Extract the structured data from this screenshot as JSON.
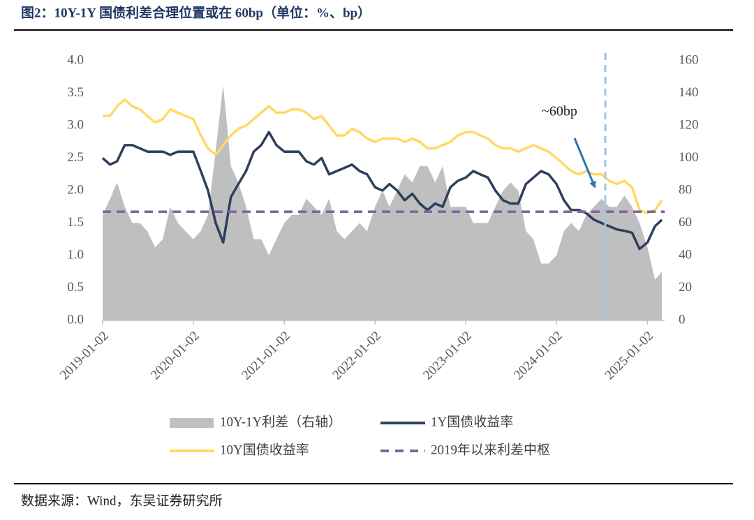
{
  "chart_data": {
    "type": "line",
    "title": "图2：10Y-1Y 国债利差合理位置或在 60bp（单位：%、bp）",
    "source": "数据来源：Wind，东吴证券研究所",
    "annotation": "~60bp",
    "x": [
      "2019-01-02",
      "2019-02-01",
      "2019-03-01",
      "2019-04-01",
      "2019-05-01",
      "2019-06-01",
      "2019-07-01",
      "2019-08-01",
      "2019-09-01",
      "2019-10-01",
      "2019-11-01",
      "2019-12-01",
      "2020-01-02",
      "2020-02-01",
      "2020-03-01",
      "2020-04-01",
      "2020-05-01",
      "2020-06-01",
      "2020-07-01",
      "2020-08-01",
      "2020-09-01",
      "2020-10-01",
      "2020-11-01",
      "2020-12-01",
      "2021-01-02",
      "2021-02-01",
      "2021-03-01",
      "2021-04-01",
      "2021-05-01",
      "2021-06-01",
      "2021-07-01",
      "2021-08-01",
      "2021-09-01",
      "2021-10-01",
      "2021-11-01",
      "2021-12-01",
      "2022-01-02",
      "2022-02-01",
      "2022-03-01",
      "2022-04-01",
      "2022-05-01",
      "2022-06-01",
      "2022-07-01",
      "2022-08-01",
      "2022-09-01",
      "2022-10-01",
      "2022-11-01",
      "2022-12-01",
      "2023-01-02",
      "2023-02-01",
      "2023-03-01",
      "2023-04-01",
      "2023-05-01",
      "2023-06-01",
      "2023-07-01",
      "2023-08-01",
      "2023-09-01",
      "2023-10-01",
      "2023-11-01",
      "2023-12-01",
      "2024-01-02",
      "2024-02-01",
      "2024-03-01",
      "2024-04-01",
      "2024-05-01",
      "2024-06-01",
      "2024-07-01",
      "2024-08-01",
      "2024-09-01",
      "2024-10-01",
      "2024-11-01",
      "2024-12-01",
      "2025-01-02",
      "2025-02-01",
      "2025-03-01"
    ],
    "series": [
      {
        "name": "10Y-1Y利差（右轴）",
        "type": "area",
        "axis": "y2",
        "color": "#bfbfbf",
        "values": [
          65,
          75,
          85,
          70,
          60,
          60,
          55,
          45,
          50,
          70,
          60,
          55,
          50,
          55,
          65,
          105,
          145,
          95,
          85,
          70,
          50,
          50,
          40,
          50,
          60,
          65,
          65,
          75,
          70,
          65,
          75,
          55,
          50,
          55,
          60,
          55,
          70,
          80,
          70,
          80,
          90,
          85,
          95,
          95,
          85,
          95,
          70,
          70,
          70,
          60,
          60,
          60,
          70,
          80,
          85,
          80,
          55,
          50,
          35,
          35,
          40,
          55,
          60,
          55,
          65,
          70,
          75,
          70,
          70,
          77,
          70,
          60,
          45,
          25,
          30
        ]
      },
      {
        "name": "1Y国债收益率",
        "type": "line",
        "color": "#2e3f5c",
        "values": [
          2.5,
          2.4,
          2.45,
          2.7,
          2.7,
          2.65,
          2.6,
          2.6,
          2.6,
          2.55,
          2.6,
          2.6,
          2.6,
          2.3,
          2.0,
          1.5,
          1.2,
          1.9,
          2.1,
          2.3,
          2.6,
          2.7,
          2.9,
          2.7,
          2.6,
          2.6,
          2.6,
          2.45,
          2.4,
          2.5,
          2.25,
          2.3,
          2.35,
          2.4,
          2.3,
          2.25,
          2.05,
          2.0,
          2.1,
          2.0,
          1.85,
          1.95,
          1.8,
          1.7,
          1.8,
          1.75,
          2.05,
          2.15,
          2.2,
          2.3,
          2.25,
          2.2,
          2.0,
          1.85,
          1.8,
          1.8,
          2.1,
          2.2,
          2.3,
          2.25,
          2.1,
          1.85,
          1.7,
          1.7,
          1.65,
          1.55,
          1.5,
          1.45,
          1.4,
          1.38,
          1.35,
          1.1,
          1.2,
          1.45,
          1.55
        ]
      },
      {
        "name": "10Y国债收益率",
        "type": "line",
        "color": "#ffd966",
        "values": [
          3.15,
          3.15,
          3.3,
          3.4,
          3.3,
          3.25,
          3.15,
          3.05,
          3.1,
          3.25,
          3.2,
          3.15,
          3.1,
          2.85,
          2.65,
          2.55,
          2.7,
          2.85,
          2.95,
          3.0,
          3.1,
          3.2,
          3.3,
          3.2,
          3.2,
          3.25,
          3.25,
          3.2,
          3.1,
          3.15,
          3.0,
          2.85,
          2.85,
          2.95,
          2.9,
          2.8,
          2.75,
          2.8,
          2.8,
          2.8,
          2.75,
          2.8,
          2.75,
          2.65,
          2.65,
          2.7,
          2.75,
          2.85,
          2.9,
          2.9,
          2.85,
          2.8,
          2.7,
          2.65,
          2.65,
          2.6,
          2.65,
          2.7,
          2.65,
          2.6,
          2.5,
          2.4,
          2.3,
          2.25,
          2.3,
          2.25,
          2.25,
          2.15,
          2.1,
          2.15,
          2.05,
          1.7,
          1.65,
          1.7,
          1.85
        ]
      }
    ],
    "reference_line": {
      "name": "2019年以来利差中枢",
      "value": 67,
      "axis": "y2",
      "color": "#8064a2"
    },
    "xlim": [
      "2019-01-02",
      "2025-03-12"
    ],
    "xticks": [
      "2019-01-02",
      "2020-01-02",
      "2021-01-02",
      "2022-01-02",
      "2023-01-02",
      "2024-01-02",
      "2025-01-02"
    ],
    "ylim": [
      0,
      4
    ],
    "yticks": [
      {
        "value": 0,
        "label": "0.0"
      },
      0.5,
      {
        "value": 1,
        "label": "1.0"
      },
      1.5,
      {
        "value": 2,
        "label": "2.0"
      },
      2.5,
      {
        "value": 3,
        "label": "3.0"
      },
      3.5,
      {
        "value": 4,
        "label": "4.0"
      }
    ],
    "y2lim": [
      0,
      160
    ],
    "y2ticks": [
      0,
      20,
      40,
      60,
      80,
      100,
      120,
      140,
      160
    ]
  }
}
